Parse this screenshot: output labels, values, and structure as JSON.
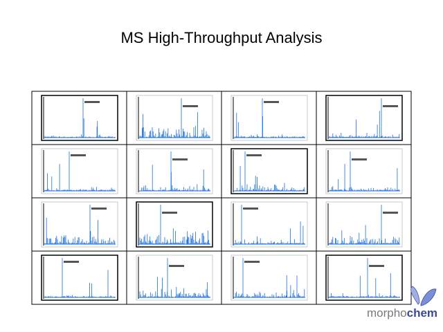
{
  "title": "MS High-Throughput Analysis",
  "logo": {
    "part1": "morpho",
    "part2": "chem"
  }
}
